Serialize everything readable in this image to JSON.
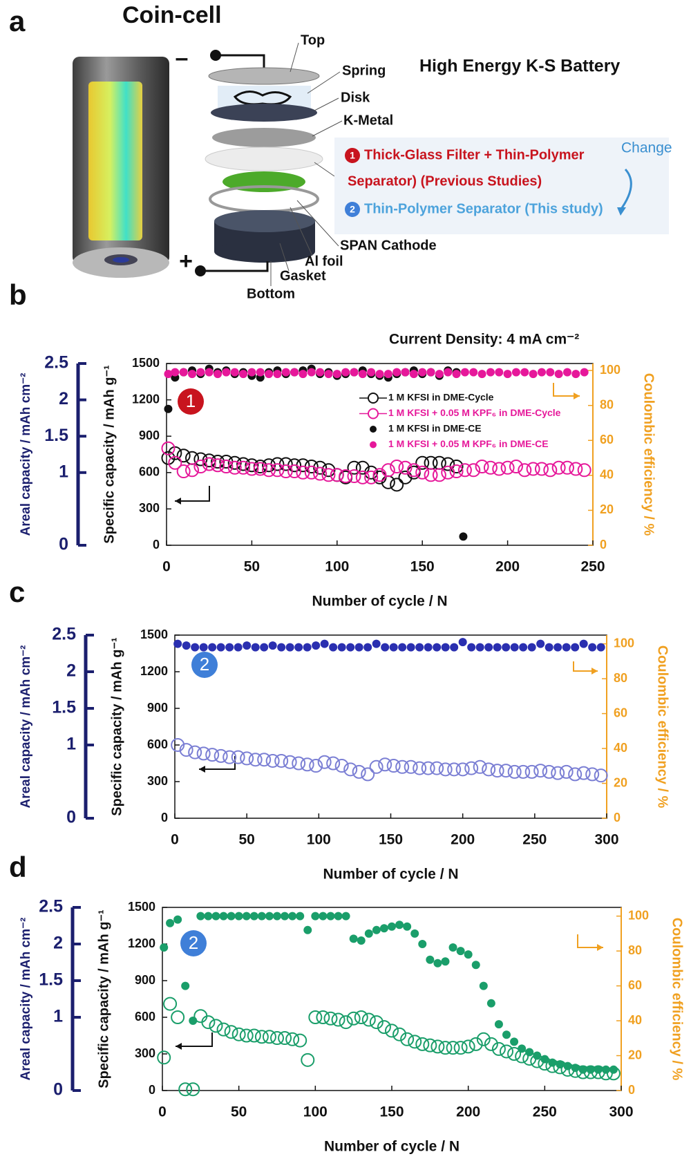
{
  "panel_a": {
    "label": "a",
    "title": "Coin-cell",
    "parts": [
      "Top",
      "Spring",
      "Disk",
      "K-Metal",
      "SPAN Cathode",
      "Al foil",
      "Gasket",
      "Bottom"
    ],
    "heading": "High Energy K-S Battery",
    "change": "Change",
    "options": [
      {
        "number": "1",
        "lines": [
          "Thick-Glass Filter + Thin-Polymer",
          "Separator) (Previous Studies)"
        ]
      },
      {
        "number": "2",
        "lines": [
          "Thin-Polymer Separator (This study)"
        ]
      }
    ]
  },
  "chart_data": [
    {
      "type": "scatter",
      "label": "b",
      "annotation": "Current Density: 4 mA cm⁻²",
      "badge": "1",
      "badge_color": "#c8141e",
      "xlabel": "Number of cycle / N",
      "ylabel": "Specific capacity / mAh g⁻¹",
      "y2label": "Coulombic efficiency / %",
      "y3label": "Areal capacity / mAh cm⁻²",
      "xlim": [
        0,
        250
      ],
      "xticks": [
        0,
        50,
        100,
        150,
        200,
        250
      ],
      "ylim": [
        0,
        1500
      ],
      "yticks": [
        0,
        300,
        600,
        900,
        1200,
        1500
      ],
      "y2lim": [
        0,
        104
      ],
      "y2ticks": [
        0,
        20,
        40,
        60,
        80,
        100
      ],
      "y3lim": [
        0,
        2.5
      ],
      "y3ticks": [
        0,
        1,
        1.5,
        2,
        2.5
      ],
      "legend": "upper right",
      "series": [
        {
          "name": "1 M KFSI in DME-Cycle",
          "color": "#111111",
          "marker": "open",
          "axis": "y",
          "x": [
            1,
            5,
            10,
            15,
            20,
            25,
            30,
            35,
            40,
            45,
            50,
            55,
            60,
            65,
            70,
            75,
            80,
            85,
            90,
            95,
            100,
            105,
            110,
            115,
            120,
            125,
            130,
            135,
            140,
            145,
            150,
            155,
            160,
            165,
            170
          ],
          "values": [
            720,
            760,
            740,
            720,
            710,
            700,
            690,
            690,
            680,
            670,
            660,
            650,
            660,
            670,
            670,
            660,
            660,
            650,
            640,
            620,
            580,
            560,
            640,
            640,
            600,
            560,
            520,
            500,
            560,
            600,
            680,
            680,
            680,
            670,
            650
          ]
        },
        {
          "name": "1 M KFSI + 0.05 M KPF₆ in DME-Cycle",
          "color": "#e6189a",
          "marker": "open",
          "axis": "y",
          "x": [
            1,
            5,
            10,
            15,
            20,
            25,
            30,
            35,
            40,
            45,
            50,
            55,
            60,
            65,
            70,
            75,
            80,
            85,
            90,
            95,
            100,
            105,
            110,
            115,
            120,
            125,
            130,
            135,
            140,
            145,
            150,
            155,
            160,
            165,
            170,
            175,
            180,
            185,
            190,
            195,
            200,
            205,
            210,
            215,
            220,
            225,
            230,
            235,
            240,
            245
          ],
          "values": [
            800,
            680,
            610,
            620,
            650,
            670,
            660,
            650,
            640,
            640,
            630,
            630,
            620,
            620,
            610,
            610,
            600,
            600,
            590,
            580,
            580,
            570,
            570,
            560,
            560,
            580,
            620,
            650,
            640,
            620,
            600,
            580,
            580,
            600,
            610,
            620,
            620,
            650,
            640,
            630,
            640,
            650,
            620,
            630,
            630,
            620,
            640,
            640,
            630,
            620
          ]
        },
        {
          "name": "1 M KFSI in DME-CE",
          "color": "#111111",
          "marker": "filled",
          "axis": "y2",
          "x": [
            1,
            5,
            10,
            15,
            20,
            25,
            30,
            35,
            40,
            45,
            50,
            55,
            60,
            65,
            70,
            75,
            80,
            85,
            90,
            95,
            100,
            105,
            110,
            115,
            120,
            125,
            130,
            135,
            140,
            145,
            150,
            155,
            160,
            165,
            170,
            174
          ],
          "values": [
            78,
            96,
            99,
            100,
            98,
            101,
            99,
            100,
            98,
            99,
            97,
            96,
            99,
            100,
            98,
            99,
            100,
            101,
            98,
            99,
            97,
            98,
            99,
            100,
            98,
            97,
            96,
            98,
            99,
            100,
            98,
            99,
            97,
            100,
            99,
            5
          ]
        },
        {
          "name": "1 M KFSI + 0.05 M KPF₆ in DME-CE",
          "color": "#e6189a",
          "marker": "filled",
          "axis": "y2",
          "x": [
            1,
            5,
            10,
            15,
            20,
            25,
            30,
            35,
            40,
            45,
            50,
            55,
            60,
            65,
            70,
            75,
            80,
            85,
            90,
            95,
            100,
            105,
            110,
            115,
            120,
            125,
            130,
            135,
            140,
            145,
            150,
            155,
            160,
            165,
            170,
            175,
            180,
            185,
            190,
            195,
            200,
            205,
            210,
            215,
            220,
            225,
            230,
            235,
            240,
            245
          ],
          "values": [
            98,
            99,
            99,
            98,
            99,
            99,
            98,
            99,
            99,
            98,
            99,
            99,
            98,
            98,
            99,
            99,
            98,
            99,
            99,
            98,
            98,
            99,
            99,
            98,
            99,
            98,
            98,
            99,
            99,
            98,
            99,
            99,
            98,
            99,
            98,
            99,
            99,
            98,
            99,
            99,
            98,
            99,
            99,
            98,
            99,
            99,
            98,
            99,
            98,
            99
          ]
        }
      ]
    },
    {
      "type": "scatter",
      "label": "c",
      "badge": "2",
      "badge_color": "#3f7fd8",
      "xlabel": "Number of cycle / N",
      "ylabel": "Specific capacity / mAh g⁻¹",
      "y2label": "Coulombic efficiency / %",
      "y3label": "Areal capacity / mAh cm⁻²",
      "xlim": [
        0,
        300
      ],
      "xticks": [
        0,
        50,
        100,
        150,
        200,
        250,
        300
      ],
      "ylim": [
        0,
        1500
      ],
      "yticks": [
        0,
        300,
        600,
        900,
        1200,
        1500
      ],
      "y2lim": [
        0,
        105
      ],
      "y2ticks": [
        0,
        20,
        40,
        60,
        80,
        100
      ],
      "y3lim": [
        0,
        2.5
      ],
      "y3ticks": [
        0,
        1,
        1.5,
        2,
        2.5
      ],
      "series": [
        {
          "color": "#7b7fd4",
          "marker": "open",
          "axis": "y",
          "x": [
            2,
            8,
            14,
            20,
            26,
            32,
            38,
            44,
            50,
            56,
            62,
            68,
            74,
            80,
            86,
            92,
            98,
            104,
            110,
            116,
            122,
            128,
            134,
            140,
            146,
            152,
            158,
            164,
            170,
            176,
            182,
            188,
            194,
            200,
            206,
            212,
            218,
            224,
            230,
            236,
            242,
            248,
            254,
            260,
            266,
            272,
            278,
            284,
            290,
            296
          ],
          "values": [
            600,
            560,
            540,
            530,
            520,
            510,
            500,
            500,
            490,
            480,
            480,
            470,
            470,
            460,
            450,
            440,
            430,
            460,
            450,
            430,
            400,
            380,
            360,
            420,
            440,
            430,
            420,
            420,
            410,
            410,
            410,
            400,
            400,
            400,
            410,
            420,
            400,
            390,
            390,
            380,
            380,
            380,
            390,
            380,
            370,
            380,
            360,
            370,
            360,
            350
          ]
        },
        {
          "color": "#2a2fb0",
          "marker": "filled",
          "axis": "y2",
          "x": [
            2,
            8,
            14,
            20,
            26,
            32,
            38,
            44,
            50,
            56,
            62,
            68,
            74,
            80,
            86,
            92,
            98,
            104,
            110,
            116,
            122,
            128,
            134,
            140,
            146,
            152,
            158,
            164,
            170,
            176,
            182,
            188,
            194,
            200,
            206,
            212,
            218,
            224,
            230,
            236,
            242,
            248,
            254,
            260,
            266,
            272,
            278,
            284,
            290,
            296
          ],
          "values": [
            100,
            99,
            98,
            98,
            98,
            98,
            98,
            98,
            99,
            98,
            98,
            99,
            98,
            98,
            98,
            98,
            99,
            100,
            98,
            98,
            98,
            98,
            98,
            100,
            98,
            98,
            98,
            98,
            98,
            98,
            98,
            98,
            98,
            101,
            98,
            98,
            98,
            98,
            98,
            98,
            98,
            98,
            100,
            98,
            98,
            98,
            98,
            100,
            98,
            98
          ]
        }
      ]
    },
    {
      "type": "scatter",
      "label": "d",
      "badge": "2",
      "badge_color": "#3f7fd8",
      "xlabel": "Number of cycle / N",
      "ylabel": "Specific capacity / mAh g⁻¹",
      "y2label": "Coulombic efficiency / %",
      "y3label": "Areal capacity / mAh cm⁻²",
      "xlim": [
        0,
        300
      ],
      "xticks": [
        0,
        50,
        100,
        150,
        200,
        250,
        300
      ],
      "ylim": [
        0,
        1500
      ],
      "yticks": [
        0,
        300,
        600,
        900,
        1200,
        1500
      ],
      "y2lim": [
        0,
        105
      ],
      "y2ticks": [
        0,
        20,
        40,
        60,
        80,
        100
      ],
      "y3lim": [
        0,
        2.5
      ],
      "y3ticks": [
        0,
        1,
        1.5,
        2,
        2.5
      ],
      "series": [
        {
          "color": "#1a9e6a",
          "marker": "open",
          "axis": "y",
          "x": [
            1,
            5,
            10,
            15,
            20,
            25,
            30,
            35,
            40,
            45,
            50,
            55,
            60,
            65,
            70,
            75,
            80,
            85,
            90,
            95,
            100,
            105,
            110,
            115,
            120,
            125,
            130,
            135,
            140,
            145,
            150,
            155,
            160,
            165,
            170,
            175,
            180,
            185,
            190,
            195,
            200,
            205,
            210,
            215,
            220,
            225,
            230,
            235,
            240,
            245,
            250,
            255,
            260,
            265,
            270,
            275,
            280,
            285,
            290,
            295
          ],
          "values": [
            270,
            710,
            600,
            10,
            10,
            610,
            560,
            530,
            500,
            480,
            460,
            450,
            450,
            440,
            440,
            430,
            430,
            420,
            410,
            250,
            600,
            600,
            590,
            580,
            560,
            590,
            600,
            580,
            560,
            520,
            490,
            460,
            420,
            400,
            380,
            370,
            360,
            350,
            350,
            350,
            360,
            380,
            420,
            380,
            340,
            320,
            300,
            280,
            260,
            240,
            220,
            200,
            190,
            170,
            160,
            150,
            150,
            150,
            140,
            140
          ]
        },
        {
          "color": "#1a9e6a",
          "marker": "filled",
          "axis": "y2",
          "x": [
            1,
            5,
            10,
            15,
            20,
            25,
            30,
            35,
            40,
            45,
            50,
            55,
            60,
            65,
            70,
            75,
            80,
            85,
            90,
            95,
            100,
            105,
            110,
            115,
            120,
            125,
            130,
            135,
            140,
            145,
            150,
            155,
            160,
            165,
            170,
            175,
            180,
            185,
            190,
            195,
            200,
            205,
            210,
            215,
            220,
            225,
            230,
            235,
            240,
            245,
            250,
            255,
            260,
            265,
            270,
            275,
            280,
            285,
            290,
            295
          ],
          "values": [
            82,
            96,
            98,
            60,
            40,
            100,
            100,
            100,
            100,
            100,
            100,
            100,
            100,
            100,
            100,
            100,
            100,
            100,
            100,
            92,
            100,
            100,
            100,
            100,
            100,
            87,
            86,
            90,
            92,
            93,
            94,
            95,
            94,
            90,
            84,
            75,
            73,
            74,
            82,
            80,
            78,
            72,
            60,
            50,
            38,
            32,
            28,
            24,
            22,
            20,
            18,
            16,
            15,
            14,
            13,
            12,
            12,
            12,
            12,
            12
          ]
        }
      ]
    }
  ]
}
